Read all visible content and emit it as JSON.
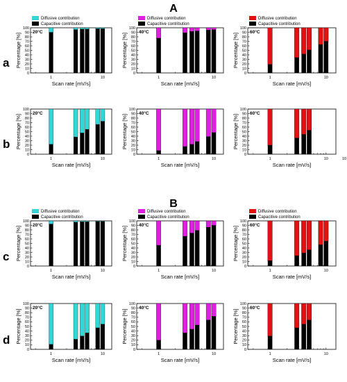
{
  "figure": {
    "sections": [
      {
        "title": "A"
      },
      {
        "title": "B"
      }
    ],
    "row_letters": [
      "a",
      "b",
      "c",
      "d"
    ],
    "legend": {
      "diffusive": "Diffusive contribution",
      "capacitive": "Capacitive contribution"
    },
    "colors": {
      "20C": "#33d6d6",
      "40C": "#e020e0",
      "60C": "#e21212",
      "capacitive": "#000000"
    },
    "x_ticks": [
      "1",
      "10"
    ],
    "x_tick_extra": "10",
    "y_ticks": [
      "0",
      "10",
      "20",
      "30",
      "40",
      "50",
      "60",
      "70",
      "80",
      "90",
      "100"
    ]
  },
  "chart_data": [
    {
      "type": "bar",
      "stacked": true,
      "section": "A",
      "row": "a",
      "temperature": "20°C",
      "color": "#33d6d6",
      "legend": true,
      "xlabel": "Scan rate [mV/s]",
      "ylabel": "Percentage [%]",
      "xscale": "log",
      "ylim": [
        0,
        100
      ],
      "x": [
        1,
        3,
        4,
        5,
        8,
        10
      ],
      "capacitive": [
        90,
        96,
        97,
        97,
        98,
        98
      ]
    },
    {
      "type": "bar",
      "stacked": true,
      "section": "A",
      "row": "a",
      "temperature": "40°C",
      "color": "#e020e0",
      "legend": true,
      "xlabel": "Scan rate [mV/s]",
      "ylabel": "Percentage [%]",
      "xscale": "log",
      "ylim": [
        0,
        100
      ],
      "x": [
        1,
        3,
        4,
        5,
        8,
        10
      ],
      "capacitive": [
        77,
        89,
        92,
        93,
        95,
        96
      ]
    },
    {
      "type": "bar",
      "stacked": true,
      "section": "A",
      "row": "a",
      "temperature": "60°C",
      "color": "#e21212",
      "legend": true,
      "xlabel": "Scan rate [mV/s]",
      "ylabel": "Percentage [%]",
      "xscale": "log",
      "ylim": [
        0,
        100
      ],
      "x": [
        1,
        3,
        4,
        5,
        8,
        10
      ],
      "capacitive": [
        19,
        34,
        42,
        51,
        63,
        70
      ]
    },
    {
      "type": "bar",
      "stacked": true,
      "section": "A",
      "row": "b",
      "temperature": "20°C",
      "color": "#33d6d6",
      "legend": false,
      "xlabel": "Scan rate [mV/s]",
      "ylabel": "Percentage [%]",
      "xscale": "log",
      "ylim": [
        0,
        100
      ],
      "x": [
        1,
        3,
        4,
        5,
        8,
        10
      ],
      "capacitive": [
        22,
        38,
        47,
        55,
        66,
        73
      ]
    },
    {
      "type": "bar",
      "stacked": true,
      "section": "A",
      "row": "b",
      "temperature": "40°C",
      "color": "#e020e0",
      "legend": false,
      "xlabel": "Scan rate [mV/s]",
      "ylabel": "Percentage [%]",
      "xscale": "log",
      "ylim": [
        0,
        100
      ],
      "x": [
        1,
        3,
        4,
        5,
        8,
        10
      ],
      "capacitive": [
        8,
        17,
        22,
        28,
        39,
        48
      ]
    },
    {
      "type": "bar",
      "stacked": true,
      "section": "A",
      "row": "b",
      "temperature": "60°C",
      "color": "#e21212",
      "legend": false,
      "xlabel": "Scan rate [mV/s]",
      "ylabel": "Percentage [%]",
      "xscale": "log",
      "ylim": [
        0,
        100
      ],
      "x": [
        1,
        3,
        4,
        5
      ],
      "capacitive": [
        20,
        36,
        44,
        53
      ]
    },
    {
      "type": "bar",
      "stacked": true,
      "section": "B",
      "row": "c",
      "temperature": "20°C",
      "color": "#33d6d6",
      "legend": true,
      "xlabel": "Scan rate [mV/s]",
      "ylabel": "Percentage [%]",
      "xscale": "log",
      "ylim": [
        0,
        100
      ],
      "x": [
        1,
        3,
        4,
        5,
        8,
        10
      ],
      "capacitive": [
        93,
        97,
        98,
        98,
        99,
        99
      ]
    },
    {
      "type": "bar",
      "stacked": true,
      "section": "B",
      "row": "c",
      "temperature": "40°C",
      "color": "#e020e0",
      "legend": true,
      "xlabel": "Scan rate [mV/s]",
      "ylabel": "Percentage [%]",
      "xscale": "log",
      "ylim": [
        0,
        100
      ],
      "x": [
        1,
        3,
        4,
        5,
        8,
        10
      ],
      "capacitive": [
        46,
        66,
        73,
        79,
        86,
        90
      ]
    },
    {
      "type": "bar",
      "stacked": true,
      "section": "B",
      "row": "c",
      "temperature": "60°C",
      "color": "#e21212",
      "legend": true,
      "xlabel": "Scan rate [mV/s]",
      "ylabel": "Percentage [%]",
      "xscale": "log",
      "ylim": [
        0,
        100
      ],
      "x": [
        1,
        3,
        4,
        5,
        8,
        10
      ],
      "capacitive": [
        12,
        23,
        29,
        36,
        47,
        55
      ]
    },
    {
      "type": "bar",
      "stacked": true,
      "section": "B",
      "row": "d",
      "temperature": "20°C",
      "color": "#33d6d6",
      "legend": false,
      "xlabel": "Scan rate [mV/s]",
      "ylabel": "Percentage [%]",
      "xscale": "log",
      "ylim": [
        0,
        100
      ],
      "x": [
        1,
        3,
        4,
        5,
        8,
        10
      ],
      "capacitive": [
        11,
        22,
        29,
        36,
        47,
        55
      ]
    },
    {
      "type": "bar",
      "stacked": true,
      "section": "B",
      "row": "d",
      "temperature": "40°C",
      "color": "#e020e0",
      "legend": false,
      "xlabel": "Scan rate [mV/s]",
      "ylabel": "Percentage [%]",
      "xscale": "log",
      "ylim": [
        0,
        100
      ],
      "x": [
        1,
        3,
        4,
        5,
        8,
        10
      ],
      "capacitive": [
        20,
        36,
        44,
        53,
        64,
        72
      ]
    },
    {
      "type": "bar",
      "stacked": true,
      "section": "B",
      "row": "d",
      "temperature": "60°C",
      "color": "#e21212",
      "legend": false,
      "xlabel": "Scan rate [mV/s]",
      "ylabel": "Percentage [%]",
      "xscale": "log",
      "ylim": [
        0,
        100
      ],
      "x": [
        1,
        3,
        4,
        5
      ],
      "capacitive": [
        29,
        47,
        55,
        64
      ]
    }
  ]
}
